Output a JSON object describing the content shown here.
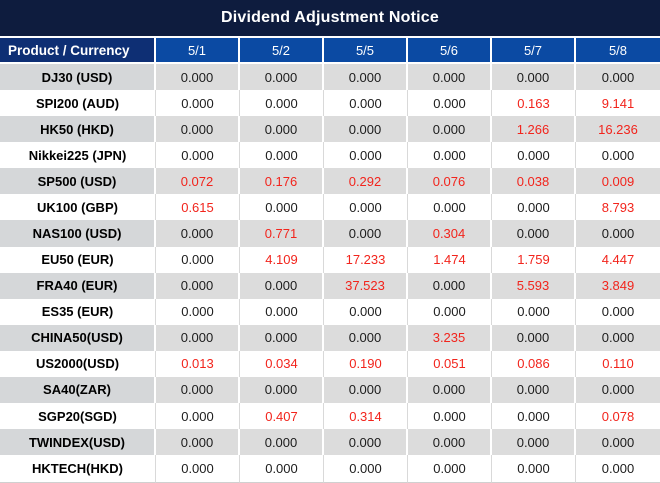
{
  "title": "Dividend Adjustment Notice",
  "colors": {
    "title_bar_bg": "#0e1c3e",
    "product_header_bg": "#0e2f74",
    "date_header_bg": "#0b4aa3",
    "stripe_row_bg": "#dcdcdc",
    "stripe_label_bg": "#d5d7d9",
    "nonzero_value_red": "#f2241c",
    "value_text": "#1c1c1c"
  },
  "table": {
    "header": {
      "product_label": "Product / Currency",
      "dates": [
        "5/1",
        "5/2",
        "5/5",
        "5/6",
        "5/7",
        "5/8"
      ]
    },
    "zero_value": "0.000",
    "rows": [
      {
        "product": "DJ30 (USD)",
        "values": [
          "0.000",
          "0.000",
          "0.000",
          "0.000",
          "0.000",
          "0.000"
        ]
      },
      {
        "product": "SPI200 (AUD)",
        "values": [
          "0.000",
          "0.000",
          "0.000",
          "0.000",
          "0.163",
          "9.141"
        ]
      },
      {
        "product": "HK50 (HKD)",
        "values": [
          "0.000",
          "0.000",
          "0.000",
          "0.000",
          "1.266",
          "16.236"
        ]
      },
      {
        "product": "Nikkei225 (JPN)",
        "values": [
          "0.000",
          "0.000",
          "0.000",
          "0.000",
          "0.000",
          "0.000"
        ]
      },
      {
        "product": "SP500 (USD)",
        "values": [
          "0.072",
          "0.176",
          "0.292",
          "0.076",
          "0.038",
          "0.009"
        ]
      },
      {
        "product": "UK100 (GBP)",
        "values": [
          "0.615",
          "0.000",
          "0.000",
          "0.000",
          "0.000",
          "8.793"
        ]
      },
      {
        "product": "NAS100 (USD)",
        "values": [
          "0.000",
          "0.771",
          "0.000",
          "0.304",
          "0.000",
          "0.000"
        ]
      },
      {
        "product": "EU50 (EUR)",
        "values": [
          "0.000",
          "4.109",
          "17.233",
          "1.474",
          "1.759",
          "4.447"
        ]
      },
      {
        "product": "FRA40 (EUR)",
        "values": [
          "0.000",
          "0.000",
          "37.523",
          "0.000",
          "5.593",
          "3.849"
        ]
      },
      {
        "product": "ES35 (EUR)",
        "values": [
          "0.000",
          "0.000",
          "0.000",
          "0.000",
          "0.000",
          "0.000"
        ]
      },
      {
        "product": "CHINA50(USD)",
        "values": [
          "0.000",
          "0.000",
          "0.000",
          "3.235",
          "0.000",
          "0.000"
        ]
      },
      {
        "product": "US2000(USD)",
        "values": [
          "0.013",
          "0.034",
          "0.190",
          "0.051",
          "0.086",
          "0.110"
        ]
      },
      {
        "product": "SA40(ZAR)",
        "values": [
          "0.000",
          "0.000",
          "0.000",
          "0.000",
          "0.000",
          "0.000"
        ]
      },
      {
        "product": "SGP20(SGD)",
        "values": [
          "0.000",
          "0.407",
          "0.314",
          "0.000",
          "0.000",
          "0.078"
        ]
      },
      {
        "product": "TWINDEX(USD)",
        "values": [
          "0.000",
          "0.000",
          "0.000",
          "0.000",
          "0.000",
          "0.000"
        ]
      },
      {
        "product": "HKTECH(HKD)",
        "values": [
          "0.000",
          "0.000",
          "0.000",
          "0.000",
          "0.000",
          "0.000"
        ]
      }
    ]
  }
}
